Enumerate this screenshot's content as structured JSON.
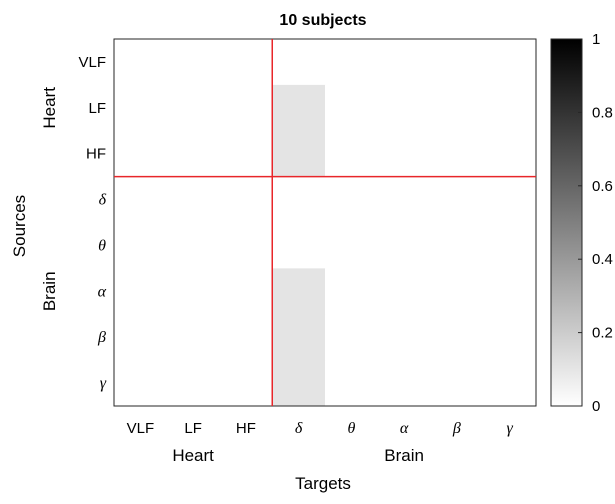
{
  "chart_data": {
    "type": "heatmap",
    "title": "10 subjects",
    "xlabel": "Targets",
    "ylabel": "Sources",
    "x_tick_labels": [
      "VLF",
      "LF",
      "HF",
      "δ",
      "θ",
      "α",
      "β",
      "γ"
    ],
    "y_tick_labels": [
      "VLF",
      "LF",
      "HF",
      "δ",
      "θ",
      "α",
      "β",
      "γ"
    ],
    "greek_from_index": 3,
    "x_groups": [
      {
        "label": "Heart",
        "from": 0,
        "to": 2
      },
      {
        "label": "Brain",
        "from": 3,
        "to": 7
      }
    ],
    "y_groups": [
      {
        "label": "Heart",
        "from": 0,
        "to": 2
      },
      {
        "label": "Brain",
        "from": 3,
        "to": 7
      }
    ],
    "divider_after_index": 2,
    "divider_color": "#e8262a",
    "values": [
      [
        0,
        0,
        0,
        0,
        0,
        0,
        0,
        0
      ],
      [
        0,
        0,
        0,
        0.1,
        0,
        0,
        0,
        0
      ],
      [
        0,
        0,
        0,
        0.1,
        0,
        0,
        0,
        0
      ],
      [
        0,
        0,
        0,
        0,
        0,
        0,
        0,
        0
      ],
      [
        0,
        0,
        0,
        0,
        0,
        0,
        0,
        0
      ],
      [
        0,
        0,
        0,
        0.1,
        0,
        0,
        0,
        0
      ],
      [
        0,
        0,
        0,
        0.1,
        0,
        0,
        0,
        0
      ],
      [
        0,
        0,
        0,
        0.1,
        0,
        0,
        0,
        0
      ]
    ],
    "colormap": "gray-reversed",
    "colorbar": {
      "min": 0,
      "max": 1,
      "ticks": [
        "0",
        "0.2",
        "0.4",
        "0.6",
        "0.8",
        "1"
      ]
    },
    "grid": false
  }
}
